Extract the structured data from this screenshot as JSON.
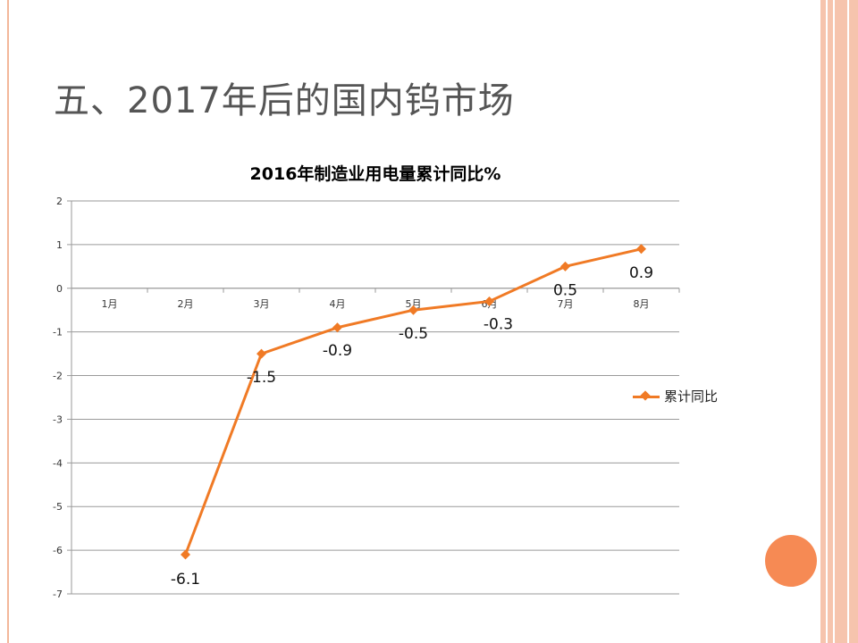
{
  "slide": {
    "title": "五、2017年后的国内钨市场"
  },
  "colors": {
    "series": "#f07a25",
    "accent_circle": "#f68a54",
    "border": "#f6c4ad"
  },
  "chart_data": {
    "type": "line",
    "title": "2016年制造业用电量累计同比%",
    "categories": [
      "1月",
      "2月",
      "3月",
      "4月",
      "5月",
      "6月",
      "7月",
      "8月"
    ],
    "series": [
      {
        "name": "累计同比",
        "values": [
          null,
          -6.1,
          -1.5,
          -0.9,
          -0.5,
          -0.3,
          0.5,
          0.9
        ],
        "labels": [
          "",
          "-6.1",
          "-1.5",
          "-0.9",
          "-0.5",
          "-0.3",
          "0.5",
          "0.9"
        ]
      }
    ],
    "ylim": [
      -7,
      2
    ],
    "yticks": [
      "2",
      "1",
      "0",
      "-1",
      "-2",
      "-3",
      "-4",
      "-5",
      "-6",
      "-7"
    ],
    "grid": true,
    "legend_position": "right"
  }
}
